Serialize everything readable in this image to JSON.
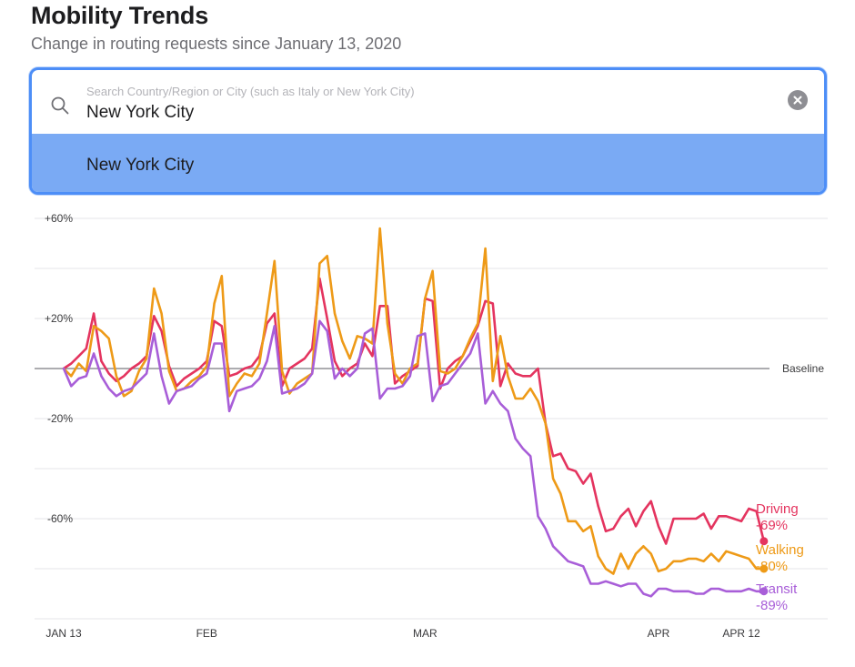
{
  "header": {
    "title": "Mobility Trends",
    "subtitle": "Change in routing requests since January 13, 2020"
  },
  "search": {
    "placeholder": "Search Country/Region or City (such as Italy or New York City)",
    "value": "New York City",
    "suggestion": "New York City"
  },
  "chart_data": {
    "type": "line",
    "x_start": "2020-01-13",
    "x_end": "2020-04-12",
    "x_ticks": [
      {
        "date": "2020-01-13",
        "label": "JAN 13"
      },
      {
        "date": "2020-02-01",
        "label": "FEB"
      },
      {
        "date": "2020-03-01",
        "label": "MAR"
      },
      {
        "date": "2020-04-01",
        "label": "APR"
      },
      {
        "date": "2020-04-12",
        "label": "APR 12"
      }
    ],
    "y_ticks": [
      {
        "value": 60,
        "label": "+60%"
      },
      {
        "value": 20,
        "label": "+20%"
      },
      {
        "value": -20,
        "label": "-20%"
      },
      {
        "value": -60,
        "label": "-60%"
      }
    ],
    "ylim": [
      -100,
      60
    ],
    "baseline_label": "Baseline",
    "grid": true,
    "series": [
      {
        "name": "Driving",
        "end_label": "-69%",
        "color": "#e4345f",
        "values": [
          0,
          2,
          5,
          8,
          22,
          3,
          -2,
          -5,
          -3,
          0,
          2,
          5,
          21,
          15,
          1,
          -7,
          -4,
          -2,
          0,
          3,
          19,
          17,
          -3,
          -2,
          0,
          1,
          5,
          18,
          22,
          -7,
          0,
          2,
          4,
          8,
          36,
          20,
          3,
          -3,
          0,
          2,
          10,
          5,
          25,
          25,
          -6,
          -3,
          -1,
          1,
          28,
          27,
          -8,
          0,
          3,
          5,
          11,
          17,
          27,
          26,
          -7,
          2,
          -2,
          -3,
          -3,
          0,
          -22,
          -35,
          -34,
          -40,
          -41,
          -46,
          -42,
          -55,
          -65,
          -64,
          -59,
          -56,
          -63,
          -57,
          -53,
          -63,
          -70,
          -60,
          -60,
          -60,
          -60,
          -58,
          -64,
          -59,
          -59,
          -60,
          -61,
          -56,
          -57,
          -69
        ]
      },
      {
        "name": "Walking",
        "end_label": "-80%",
        "color": "#ee9a17",
        "values": [
          0,
          -3,
          2,
          -1,
          17,
          15,
          12,
          -3,
          -11,
          -9,
          -1,
          4,
          32,
          22,
          -1,
          -9,
          -8,
          -5,
          -3,
          1,
          26,
          37,
          -11,
          -6,
          -2,
          -3,
          2,
          22,
          43,
          -1,
          -10,
          -6,
          -4,
          -2,
          42,
          45,
          22,
          11,
          4,
          13,
          12,
          10,
          56,
          18,
          -2,
          -6,
          0,
          2,
          28,
          39,
          -1,
          -2,
          0,
          5,
          12,
          18,
          48,
          -5,
          13,
          -3,
          -12,
          -12,
          -8,
          -13,
          -22,
          -44,
          -50,
          -61,
          -61,
          -65,
          -63,
          -75,
          -80,
          -82,
          -74,
          -80,
          -74,
          -71,
          -74,
          -81,
          -80,
          -77,
          -77,
          -76,
          -76,
          -77,
          -74,
          -77,
          -73,
          -74,
          -75,
          -76,
          -80,
          -80
        ]
      },
      {
        "name": "Transit",
        "end_label": "-89%",
        "color": "#a85ed8",
        "values": [
          0,
          -7,
          -4,
          -3,
          6,
          -3,
          -8,
          -11,
          -9,
          -8,
          -5,
          -2,
          14,
          -3,
          -14,
          -9,
          -8,
          -7,
          -4,
          -2,
          10,
          10,
          -17,
          -9,
          -8,
          -7,
          -4,
          3,
          17,
          -10,
          -9,
          -8,
          -6,
          -2,
          19,
          15,
          -4,
          0,
          -3,
          0,
          14,
          16,
          -12,
          -8,
          -8,
          -7,
          -3,
          13,
          14,
          -13,
          -7,
          -6,
          -2,
          2,
          6,
          14,
          -14,
          -9,
          -14,
          -17,
          -28,
          -32,
          -35,
          -59,
          -64,
          -71,
          -74,
          -77,
          -78,
          -79,
          -86,
          -86,
          -85,
          -86,
          -87,
          -86,
          -86,
          -90,
          -91,
          -88,
          -88,
          -89,
          -89,
          -89,
          -90,
          -90,
          -88,
          -88,
          -89,
          -89,
          -89,
          -88,
          -89,
          -89
        ]
      }
    ]
  }
}
